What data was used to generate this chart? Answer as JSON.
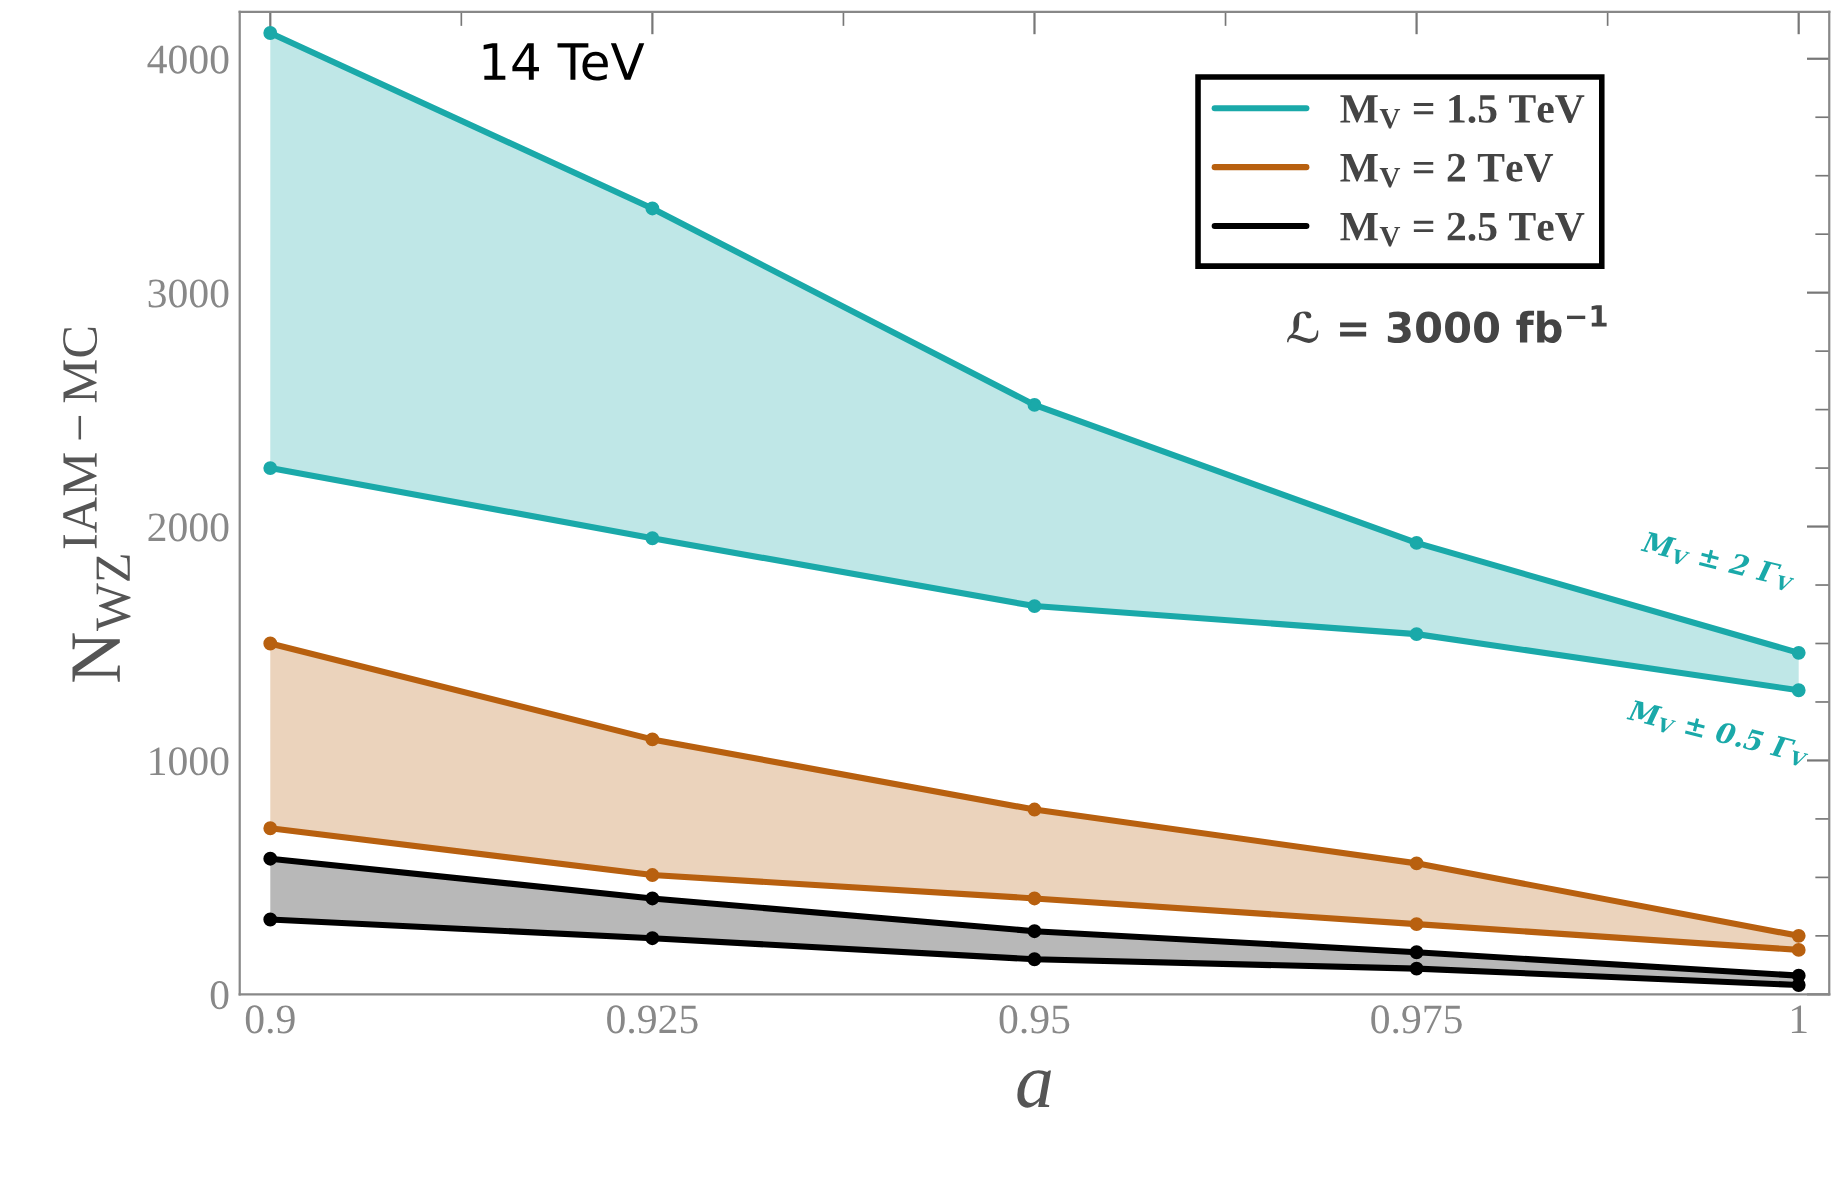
{
  "chart_data": {
    "type": "line",
    "xlabel": "a",
    "ylabel": "N$_{WZ}$$^{IAM−MC}$",
    "x": [
      0.9,
      0.925,
      0.95,
      0.975,
      1
    ],
    "series": [
      {
        "name": "M$_{V}$ = 1.5 TeV",
        "color": "#1aa9a9",
        "values": [
          4110,
          3360,
          2520,
          1930,
          1460
        ],
        "upper": [
          4110,
          3360,
          2520,
          1930,
          1460
        ],
        "lower": [
          2250,
          1950,
          1660,
          1540,
          1300
        ]
      },
      {
        "color": "#1aa9a9",
        "values": [
          2250,
          1950,
          1660,
          1540,
          1300
        ]
      },
      {
        "name": "M$_{V}$ = 2 TeV",
        "color": "#b8600f",
        "values": [
          1500,
          1090,
          790,
          560,
          250
        ],
        "upper": [
          1500,
          1090,
          790,
          560,
          250
        ],
        "lower": [
          710,
          510,
          410,
          300,
          190
        ]
      },
      {
        "color": "#b8600f",
        "values": [
          710,
          510,
          410,
          300,
          190
        ]
      },
      {
        "name": "M$_{V}$ = 2.5 TeV",
        "color": "#000000",
        "values": [
          580,
          410,
          270,
          180,
          80
        ],
        "upper": [
          580,
          410,
          270,
          180,
          80
        ],
        "lower": [
          320,
          240,
          150,
          110,
          40
        ]
      },
      {
        "color": "#000000",
        "values": [
          320,
          240,
          150,
          110,
          40
        ]
      }
    ],
    "xlim": [
      0.898,
      1.002
    ],
    "xticks": [
      0.9,
      0.925,
      0.95,
      0.975,
      1
    ],
    "ylim": [
      0,
      4200
    ],
    "yticks": [
      0,
      1000,
      2000,
      3000,
      4000
    ],
    "annotations": [
      "14 TeV",
      "ℒ = 3000 fb$^{−1}$",
      "M$_{V}$ ± 2 Γ$_{V}$",
      "M$_{V}$ ± 0.5 Γ$_{V}$"
    ],
    "marker": "circle",
    "line_style": "solid",
    "grid": false,
    "legend": "top right"
  }
}
